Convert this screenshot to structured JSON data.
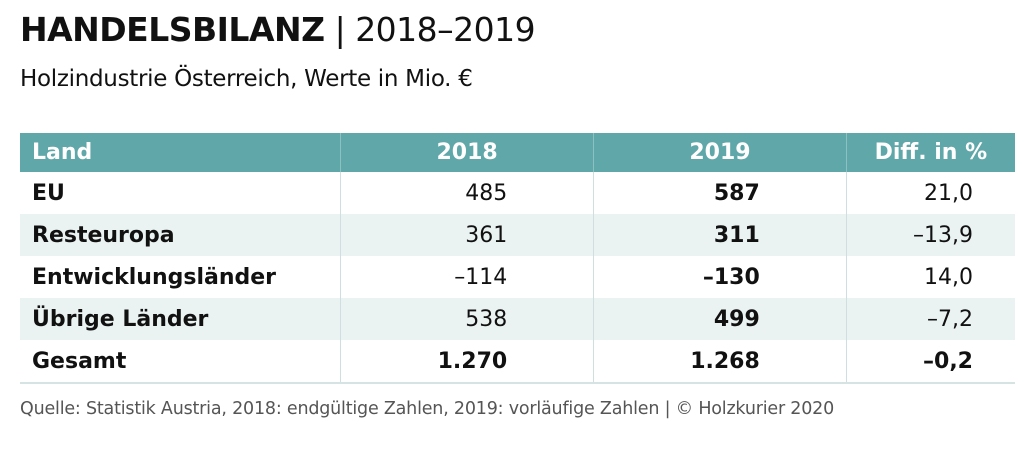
{
  "title": {
    "main": "HANDELSBILANZ",
    "separator": "|",
    "years": "2018–2019"
  },
  "subtitle": "Holzindustrie Österreich, Werte in Mio. €",
  "table": {
    "headers": [
      "Land",
      "2018",
      "2019",
      "Diff. in %"
    ],
    "rows": [
      [
        "EU",
        "485",
        "587",
        "21,0"
      ],
      [
        "Resteuropa",
        "361",
        "311",
        "–13,9"
      ],
      [
        "Entwicklungsländer",
        "–114",
        "–130",
        "14,0"
      ],
      [
        "Übrige Länder",
        "538",
        "499",
        "–7,2"
      ],
      [
        "Gesamt",
        "1.270",
        "1.268",
        "–0,2"
      ]
    ]
  },
  "source": "Quelle: Statistik Austria, 2018: endgültige Zahlen, 2019: vorläufige Zahlen | © Holzkurier 2020",
  "colors": {
    "header": "#60a7a9",
    "stripe": "#eaf2f2"
  }
}
